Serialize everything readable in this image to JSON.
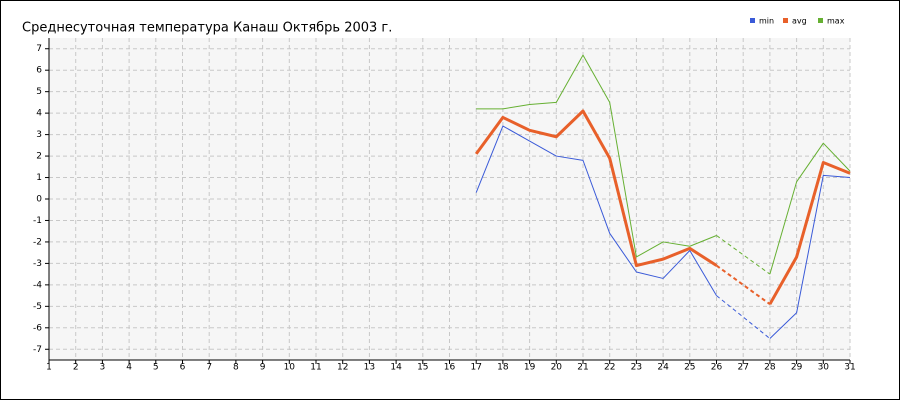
{
  "chart_data": {
    "type": "line",
    "title": "Среднесуточная температура Канаш  Октябрь 2003 г.",
    "x": [
      17,
      18,
      19,
      20,
      21,
      22,
      23,
      24,
      25,
      26,
      27,
      28,
      29,
      30,
      31
    ],
    "series": [
      {
        "name": "min",
        "color": "#3a5ad8",
        "values": [
          0.3,
          3.4,
          2.7,
          2.0,
          1.8,
          -1.6,
          -3.4,
          -3.7,
          -2.4,
          -4.5,
          null,
          -6.5,
          -5.3,
          1.1,
          1.0
        ]
      },
      {
        "name": "avg",
        "color": "#e8602a",
        "values": [
          2.1,
          3.8,
          3.2,
          2.9,
          4.1,
          1.9,
          -3.1,
          -2.8,
          -2.3,
          -3.1,
          null,
          -4.9,
          -2.7,
          1.7,
          1.2
        ]
      },
      {
        "name": "max",
        "color": "#66b032",
        "values": [
          4.2,
          4.2,
          4.4,
          4.5,
          6.7,
          4.5,
          -2.7,
          -2.0,
          -2.2,
          -1.7,
          null,
          -3.5,
          0.8,
          2.6,
          1.3
        ]
      }
    ],
    "xlim": [
      1,
      31
    ],
    "xticks": [
      1,
      2,
      3,
      4,
      5,
      6,
      7,
      8,
      9,
      10,
      11,
      12,
      13,
      14,
      15,
      16,
      17,
      18,
      19,
      20,
      21,
      22,
      23,
      24,
      25,
      26,
      27,
      28,
      29,
      30,
      31
    ],
    "ylim": [
      -7.5,
      7.5
    ],
    "yticks": [
      -7,
      -6,
      -5,
      -4,
      -3,
      -2,
      -1,
      0,
      1,
      2,
      3,
      4,
      5,
      6,
      7
    ],
    "grid": true
  }
}
